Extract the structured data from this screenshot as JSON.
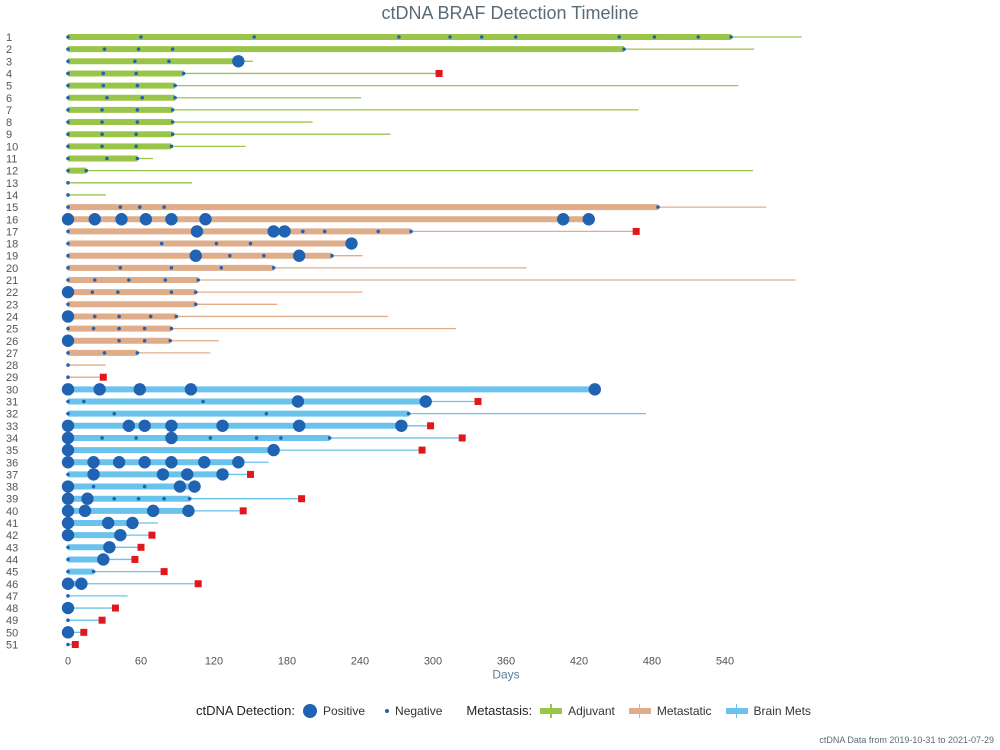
{
  "title": "ctDNA BRAF Detection Timeline",
  "footnote": "ctDNA Data from 2019-10-31 to 2021-07-29",
  "legend": {
    "detection_title": "ctDNA Detection:",
    "positive_label": "Positive",
    "negative_label": "Negative",
    "metastasis_title": "Metastasis:",
    "adjuvant_label": "Adjuvant",
    "metastatic_label": "Metastatic",
    "brain_label": "Brain Mets"
  },
  "colors": {
    "Adjuvant": "#9bc54a",
    "Metastatic": "#e0ad8a",
    "Brain Mets": "#6ac3ec",
    "point": "#1f63b2",
    "event": "#e0181c"
  },
  "chart_data": {
    "type": "timeline",
    "title": "ctDNA BRAF Detection Timeline",
    "xlabel": "Days",
    "ylabel": "",
    "xlim": [
      0,
      600
    ],
    "xticks": [
      0,
      60,
      120,
      180,
      240,
      300,
      360,
      420,
      480,
      540
    ],
    "patients": [
      {
        "id": 1,
        "group": "Adjuvant",
        "bar": 545,
        "line": 603,
        "pos": [],
        "neg": [
          0,
          60,
          153,
          272,
          314,
          340,
          368,
          453,
          482,
          518,
          545
        ],
        "event": null
      },
      {
        "id": 2,
        "group": "Adjuvant",
        "bar": 457,
        "line": 564,
        "pos": [],
        "neg": [
          0,
          30,
          58,
          86,
          457
        ],
        "event": null
      },
      {
        "id": 3,
        "group": "Adjuvant",
        "bar": 140,
        "line": 152,
        "pos": [
          140
        ],
        "neg": [
          0,
          55,
          83
        ],
        "event": null
      },
      {
        "id": 4,
        "group": "Adjuvant",
        "bar": 95,
        "line": 305,
        "pos": [],
        "neg": [
          0,
          29,
          56,
          95
        ],
        "event": 305
      },
      {
        "id": 5,
        "group": "Adjuvant",
        "bar": 88,
        "line": 551,
        "pos": [],
        "neg": [
          0,
          29,
          57,
          88
        ],
        "event": null
      },
      {
        "id": 6,
        "group": "Adjuvant",
        "bar": 88,
        "line": 241,
        "pos": [],
        "neg": [
          0,
          32,
          61,
          88
        ],
        "event": null
      },
      {
        "id": 7,
        "group": "Adjuvant",
        "bar": 86,
        "line": 469,
        "pos": [],
        "neg": [
          0,
          28,
          57,
          86
        ],
        "event": null
      },
      {
        "id": 8,
        "group": "Adjuvant",
        "bar": 86,
        "line": 201,
        "pos": [],
        "neg": [
          0,
          28,
          57,
          86
        ],
        "event": null
      },
      {
        "id": 9,
        "group": "Adjuvant",
        "bar": 86,
        "line": 265,
        "pos": [],
        "neg": [
          0,
          28,
          56,
          86
        ],
        "event": null
      },
      {
        "id": 10,
        "group": "Adjuvant",
        "bar": 85,
        "line": 146,
        "pos": [],
        "neg": [
          0,
          28,
          56,
          85
        ],
        "event": null
      },
      {
        "id": 11,
        "group": "Adjuvant",
        "bar": 57,
        "line": 70,
        "pos": [],
        "neg": [
          0,
          32,
          57
        ],
        "event": null
      },
      {
        "id": 12,
        "group": "Adjuvant",
        "bar": 15,
        "line": 563,
        "pos": [],
        "neg": [
          0,
          15
        ],
        "event": null
      },
      {
        "id": 13,
        "group": "Adjuvant",
        "bar": 0,
        "line": 102,
        "pos": [],
        "neg": [
          0
        ],
        "event": null
      },
      {
        "id": 14,
        "group": "Adjuvant",
        "bar": 0,
        "line": 31,
        "pos": [],
        "neg": [
          0
        ],
        "event": null
      },
      {
        "id": 15,
        "group": "Metastatic",
        "bar": 485,
        "line": 574,
        "pos": [],
        "neg": [
          0,
          43,
          59,
          79,
          485
        ],
        "event": null
      },
      {
        "id": 16,
        "group": "Metastatic",
        "bar": 428,
        "line": 428,
        "pos": [
          0,
          22,
          44,
          64,
          85,
          113,
          407,
          428
        ],
        "neg": [],
        "event": null
      },
      {
        "id": 17,
        "group": "Metastatic",
        "bar": 282,
        "line": 467,
        "pos": [
          106,
          169,
          178
        ],
        "neg": [
          0,
          193,
          211,
          255,
          282
        ],
        "event": 467
      },
      {
        "id": 18,
        "group": "Metastatic",
        "bar": 233,
        "line": 233,
        "pos": [
          233
        ],
        "neg": [
          0,
          77,
          122,
          150
        ],
        "event": null
      },
      {
        "id": 19,
        "group": "Metastatic",
        "bar": 217,
        "line": 242,
        "pos": [
          105,
          190
        ],
        "neg": [
          0,
          133,
          161,
          217
        ],
        "event": null
      },
      {
        "id": 20,
        "group": "Metastatic",
        "bar": 169,
        "line": 377,
        "pos": [],
        "neg": [
          0,
          43,
          85,
          126,
          169
        ],
        "event": null
      },
      {
        "id": 21,
        "group": "Metastatic",
        "bar": 107,
        "line": 598,
        "pos": [],
        "neg": [
          0,
          22,
          50,
          80,
          107
        ],
        "event": null
      },
      {
        "id": 22,
        "group": "Metastatic",
        "bar": 105,
        "line": 242,
        "pos": [
          0
        ],
        "neg": [
          20,
          41,
          85,
          105
        ],
        "event": null
      },
      {
        "id": 23,
        "group": "Metastatic",
        "bar": 105,
        "line": 172,
        "pos": [],
        "neg": [
          0,
          105
        ],
        "event": null
      },
      {
        "id": 24,
        "group": "Metastatic",
        "bar": 89,
        "line": 263,
        "pos": [
          0
        ],
        "neg": [
          22,
          42,
          68,
          89
        ],
        "event": null
      },
      {
        "id": 25,
        "group": "Metastatic",
        "bar": 85,
        "line": 319,
        "pos": [],
        "neg": [
          0,
          21,
          42,
          63,
          85
        ],
        "event": null
      },
      {
        "id": 26,
        "group": "Metastatic",
        "bar": 84,
        "line": 124,
        "pos": [
          0
        ],
        "neg": [
          42,
          63,
          84
        ],
        "event": null
      },
      {
        "id": 27,
        "group": "Metastatic",
        "bar": 57,
        "line": 117,
        "pos": [],
        "neg": [
          0,
          30,
          57
        ],
        "event": null
      },
      {
        "id": 28,
        "group": "Metastatic",
        "bar": 0,
        "line": 31,
        "pos": [],
        "neg": [
          0
        ],
        "event": null
      },
      {
        "id": 29,
        "group": "Metastatic",
        "bar": 0,
        "line": 29,
        "pos": [],
        "neg": [
          0
        ],
        "event": 29
      },
      {
        "id": 30,
        "group": "Brain Mets",
        "bar": 433,
        "line": 433,
        "pos": [
          0,
          26,
          59,
          101,
          433
        ],
        "neg": [],
        "event": null
      },
      {
        "id": 31,
        "group": "Brain Mets",
        "bar": 294,
        "line": 337,
        "pos": [
          189,
          294
        ],
        "neg": [
          0,
          13,
          111
        ],
        "event": 337
      },
      {
        "id": 32,
        "group": "Brain Mets",
        "bar": 280,
        "line": 475,
        "pos": [],
        "neg": [
          0,
          38,
          163,
          280
        ],
        "event": null
      },
      {
        "id": 33,
        "group": "Brain Mets",
        "bar": 274,
        "line": 298,
        "pos": [
          0,
          50,
          63,
          85,
          127,
          190,
          274
        ],
        "neg": [],
        "event": 298
      },
      {
        "id": 34,
        "group": "Brain Mets",
        "bar": 215,
        "line": 324,
        "pos": [
          0,
          85
        ],
        "neg": [
          28,
          56,
          117,
          155,
          175,
          215
        ],
        "event": 324
      },
      {
        "id": 35,
        "group": "Brain Mets",
        "bar": 169,
        "line": 291,
        "pos": [
          0,
          169
        ],
        "neg": [],
        "event": 291
      },
      {
        "id": 36,
        "group": "Brain Mets",
        "bar": 140,
        "line": 165,
        "pos": [
          0,
          21,
          42,
          63,
          85,
          112,
          140
        ],
        "neg": [],
        "event": null
      },
      {
        "id": 37,
        "group": "Brain Mets",
        "bar": 127,
        "line": 150,
        "pos": [
          21,
          78,
          98,
          127
        ],
        "neg": [
          0
        ],
        "event": 150
      },
      {
        "id": 38,
        "group": "Brain Mets",
        "bar": 104,
        "line": 104,
        "pos": [
          0,
          92,
          104
        ],
        "neg": [
          21,
          63
        ],
        "event": 105
      },
      {
        "id": 39,
        "group": "Brain Mets",
        "bar": 100,
        "line": 192,
        "pos": [
          0,
          16
        ],
        "neg": [
          38,
          58,
          79,
          100
        ],
        "event": 192
      },
      {
        "id": 40,
        "group": "Brain Mets",
        "bar": 99,
        "line": 144,
        "pos": [
          0,
          14,
          70,
          99
        ],
        "neg": [],
        "event": 144
      },
      {
        "id": 41,
        "group": "Brain Mets",
        "bar": 53,
        "line": 74,
        "pos": [
          0,
          33,
          53
        ],
        "neg": [],
        "event": null
      },
      {
        "id": 42,
        "group": "Brain Mets",
        "bar": 43,
        "line": 69,
        "pos": [
          0,
          43
        ],
        "neg": [],
        "event": 69
      },
      {
        "id": 43,
        "group": "Brain Mets",
        "bar": 34,
        "line": 60,
        "pos": [
          34
        ],
        "neg": [
          0
        ],
        "event": 60
      },
      {
        "id": 44,
        "group": "Brain Mets",
        "bar": 29,
        "line": 55,
        "pos": [
          29
        ],
        "neg": [
          0
        ],
        "event": 55
      },
      {
        "id": 45,
        "group": "Brain Mets",
        "bar": 21,
        "line": 79,
        "pos": [],
        "neg": [
          0,
          21
        ],
        "event": 79
      },
      {
        "id": 46,
        "group": "Brain Mets",
        "bar": 11,
        "line": 107,
        "pos": [
          0,
          11
        ],
        "neg": [],
        "event": 107
      },
      {
        "id": 47,
        "group": "Brain Mets",
        "bar": 0,
        "line": 49,
        "pos": [],
        "neg": [
          0
        ],
        "event": null
      },
      {
        "id": 48,
        "group": "Brain Mets",
        "bar": 0,
        "line": 39,
        "pos": [
          0
        ],
        "neg": [],
        "event": 39
      },
      {
        "id": 49,
        "group": "Brain Mets",
        "bar": 0,
        "line": 28,
        "pos": [],
        "neg": [
          0
        ],
        "event": 28
      },
      {
        "id": 50,
        "group": "Brain Mets",
        "bar": 0,
        "line": 13,
        "pos": [
          0
        ],
        "neg": [],
        "event": 13
      },
      {
        "id": 51,
        "group": "Brain Mets",
        "bar": 0,
        "line": 6,
        "pos": [],
        "neg": [
          0
        ],
        "event": 6
      }
    ]
  }
}
